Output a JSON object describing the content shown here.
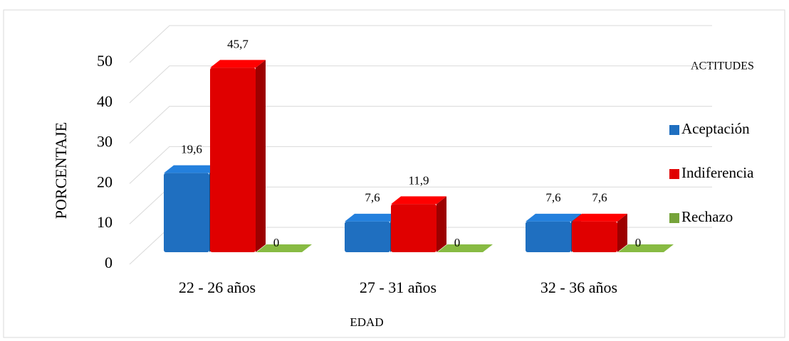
{
  "chart_data": {
    "type": "bar3d",
    "categories": [
      "22 - 26 años",
      "27 - 31 años",
      "32 - 36 años"
    ],
    "series": [
      {
        "name": "Aceptación",
        "color": "#1f6fc0",
        "values": [
          19.6,
          7.6,
          7.6
        ],
        "value_labels": [
          "19,6",
          "7,6",
          "7,6"
        ]
      },
      {
        "name": "Indiferencia",
        "color": "#e00000",
        "values": [
          45.7,
          11.9,
          7.6
        ],
        "value_labels": [
          "45,7",
          "11,9",
          "7,6"
        ]
      },
      {
        "name": "Rechazo",
        "color": "#76a33a",
        "values": [
          0,
          0,
          0
        ]
      }
    ],
    "ylim": [
      0,
      50
    ],
    "yticks": [
      0,
      10,
      20,
      30,
      40,
      50
    ],
    "grid": true,
    "y_label": "PORCENTAJE",
    "x_label": "EDAD",
    "legend_title": "ACTITUDES",
    "legend": "right"
  }
}
